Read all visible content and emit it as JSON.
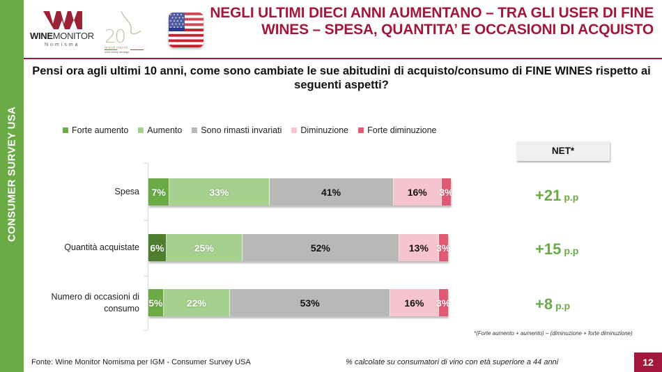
{
  "sidebar": {
    "label": "CONSUMER SURVEY USA"
  },
  "logos": {
    "winemonitor": {
      "brand_bold": "WINE",
      "brand_rest": "MONITOR",
      "sub": "Nomisma"
    },
    "anniversary": {
      "number": "20",
      "line1": "grandi marchi",
      "line2": "wine family heritage"
    },
    "flag": {
      "icon": "usa-flag-icon"
    }
  },
  "header": {
    "title": "NEGLI ULTIMI DIECI ANNI AUMENTANO – TRA GLI USER DI FINE WINES – SPESA, QUANTITA’ E OCCASIONI DI ACQUISTO",
    "question": "Pensi ora agli ultimi 10 anni, come sono cambiate le sue abitudini di acquisto/consumo di FINE WINES rispetto ai seguenti aspetti?"
  },
  "colors": {
    "brand_red": "#a3173a",
    "brand_green": "#6aab45",
    "forte_aumento": "#6aab45",
    "forte_aumento_highlight": "#4e7f2e",
    "aumento": "#a6d08e",
    "invariati": "#b8b8b6",
    "diminuzione": "#f6c4cf",
    "forte_diminuzione": "#e05a74"
  },
  "chart_data": {
    "type": "bar",
    "orientation": "horizontal",
    "stacked": true,
    "normalized_percent": true,
    "title": "Pensi ora agli ultimi 10 anni, come sono cambiate le sue abitudini di acquisto/consumo di FINE WINES rispetto ai seguenti aspetti?",
    "xlabel": "",
    "ylabel": "",
    "xlim": [
      0,
      100
    ],
    "legend_position": "top",
    "grid": false,
    "categories": [
      "Spesa",
      "Quantità acquistate",
      "Numero di occasioni di consumo"
    ],
    "series": [
      {
        "name": "Forte aumento",
        "color_key": "forte_aumento",
        "text": "light",
        "values": [
          7,
          6,
          5
        ],
        "labels": [
          "7%",
          "6%",
          "5%"
        ]
      },
      {
        "name": "Aumento",
        "color_key": "aumento",
        "text": "light",
        "values": [
          33,
          25,
          22
        ],
        "labels": [
          "33%",
          "25%",
          "22%"
        ]
      },
      {
        "name": "Sono rimasti invariati",
        "color_key": "invariati",
        "text": "dark",
        "values": [
          41,
          52,
          53
        ],
        "labels": [
          "41%",
          "52%",
          "53%"
        ]
      },
      {
        "name": "Diminuzione",
        "color_key": "diminuzione",
        "text": "dark",
        "values": [
          16,
          13,
          16
        ],
        "labels": [
          "16%",
          "13%",
          "16%"
        ]
      },
      {
        "name": "Forte diminuzione",
        "color_key": "forte_diminuzione",
        "text": "light",
        "values": [
          3,
          3,
          3
        ],
        "labels": [
          "3%",
          "3%",
          "3%"
        ]
      }
    ],
    "highlighted_segment": {
      "category": "Quantità acquistate",
      "series": "Forte aumento"
    },
    "net": {
      "header": "NET*",
      "values": [
        21,
        15,
        8
      ],
      "labels": [
        "+21",
        "+15",
        "+8"
      ],
      "unit": "p.p",
      "footnote": "*(Forte aumento + aumento) – (diminuzione + forte diminuzione)"
    }
  },
  "footer": {
    "source": "Fonte: Wine Monitor Nomisma per IGM - Consumer Survey USA",
    "note": "% calcolate su consumatori di vino con età superiore a 44 anni",
    "page_number": "12"
  }
}
